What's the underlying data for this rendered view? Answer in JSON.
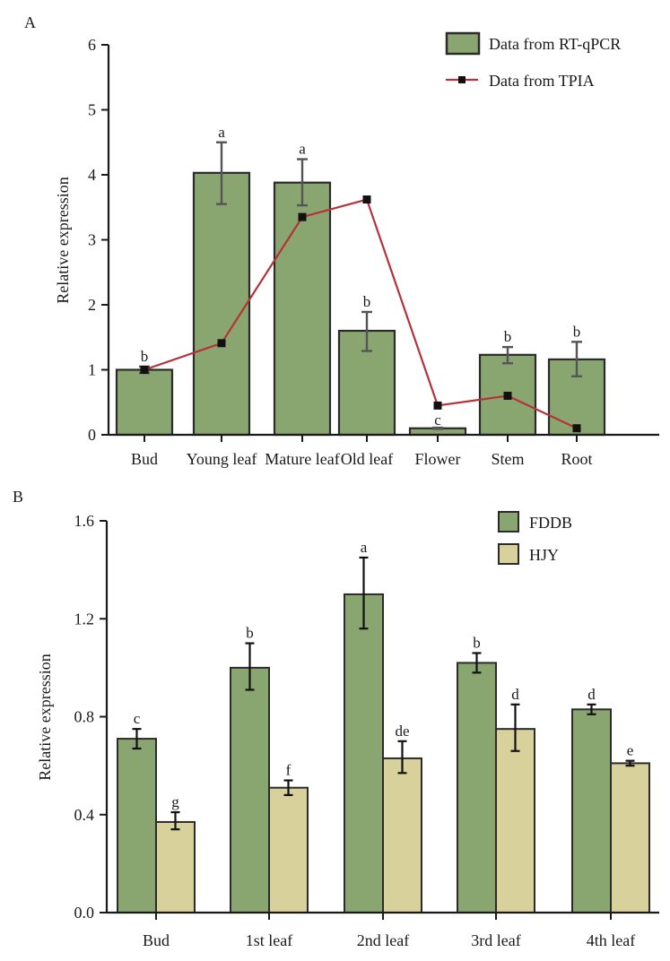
{
  "chart_data": [
    {
      "panel": "A",
      "type": "bar",
      "title": "",
      "xlabel": "",
      "ylabel": "Relative expression",
      "ylim": [
        0,
        6
      ],
      "yticks": [
        0,
        1,
        2,
        3,
        4,
        5,
        6
      ],
      "ytick_labels": [
        "0",
        "1",
        "2",
        "3",
        "4",
        "5",
        "6"
      ],
      "grid": false,
      "legend_position": "top-right",
      "categories": [
        "Bud",
        "Young leaf",
        "Mature leaf",
        "Old leaf",
        "Flower",
        "Stem",
        "Root"
      ],
      "series": [
        {
          "name": "Data from RT-qPCR",
          "kind": "bar",
          "color": "#8aa670",
          "values": [
            1.0,
            4.03,
            3.88,
            1.6,
            0.1,
            1.23,
            1.16
          ],
          "error_low": [
            0.95,
            3.55,
            3.53,
            1.29,
            0.09,
            1.1,
            0.9
          ],
          "error_high": [
            1.05,
            4.5,
            4.24,
            1.89,
            0.11,
            1.35,
            1.43
          ],
          "significance": [
            "b",
            "a",
            "a",
            "b",
            "c",
            "b",
            "b"
          ]
        },
        {
          "name": "Data from TPIA",
          "kind": "line",
          "color": "#b5323a",
          "marker": "square",
          "values": [
            1.0,
            1.41,
            3.35,
            3.62,
            0.45,
            0.6,
            0.1
          ]
        }
      ]
    },
    {
      "panel": "B",
      "type": "bar",
      "title": "",
      "xlabel": "",
      "ylabel": "Relative expression",
      "ylim": [
        0,
        1.6
      ],
      "yticks": [
        0,
        0.4,
        0.8,
        1.2,
        1.6
      ],
      "ytick_labels": [
        "0.0",
        "0.4",
        "0.8",
        "1.2",
        "1.6"
      ],
      "grid": false,
      "legend_position": "top-right",
      "categories": [
        "Bud",
        "1st leaf",
        "2nd leaf",
        "3rd leaf",
        "4th leaf"
      ],
      "series": [
        {
          "name": "FDDB",
          "kind": "bar",
          "color": "#8aa670",
          "values": [
            0.71,
            1.0,
            1.3,
            1.02,
            0.83
          ],
          "error_low": [
            0.67,
            0.91,
            1.16,
            0.98,
            0.81
          ],
          "error_high": [
            0.75,
            1.1,
            1.45,
            1.06,
            0.85
          ],
          "significance": [
            "c",
            "b",
            "a",
            "b",
            "d"
          ]
        },
        {
          "name": "HJY",
          "kind": "bar",
          "color": "#d9d19c",
          "values": [
            0.37,
            0.51,
            0.63,
            0.75,
            0.61
          ],
          "error_low": [
            0.34,
            0.48,
            0.57,
            0.66,
            0.6
          ],
          "error_high": [
            0.41,
            0.54,
            0.7,
            0.85,
            0.62
          ],
          "significance": [
            "g",
            "f",
            "de",
            "d",
            "e"
          ]
        }
      ]
    }
  ],
  "colors": {
    "axis": "#1a1a1a",
    "bar_border": "#2b2b2b",
    "errorbar_A": "#555555",
    "errorbar_B": "#111111",
    "marker": "#111111"
  }
}
